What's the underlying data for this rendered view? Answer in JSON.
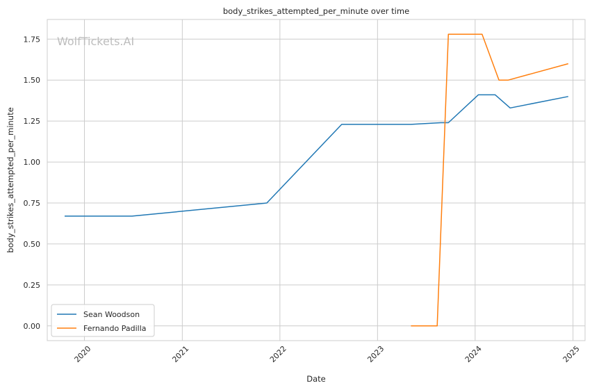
{
  "chart_data": {
    "type": "line",
    "title": "body_strikes_attempted_per_minute over time",
    "xlabel": "Date",
    "ylabel": "body_strikes_attempted_per_minute",
    "watermark": "WolfTickets.AI",
    "grid": true,
    "legend_position": "lower-left",
    "xlim": [
      "2019-08-15",
      "2025-02-15"
    ],
    "ylim": [
      -0.09,
      1.87
    ],
    "x_ticks": [
      "2020-01-01",
      "2021-01-01",
      "2022-01-01",
      "2023-01-01",
      "2024-01-01",
      "2025-01-01"
    ],
    "x_tick_labels": [
      "2020",
      "2021",
      "2022",
      "2023",
      "2024",
      "2025"
    ],
    "y_ticks": [
      0.0,
      0.25,
      0.5,
      0.75,
      1.0,
      1.25,
      1.5,
      1.75
    ],
    "y_tick_labels": [
      "0.00",
      "0.25",
      "0.50",
      "0.75",
      "1.00",
      "1.25",
      "1.50",
      "1.75"
    ],
    "series": [
      {
        "name": "Sean Woodson",
        "color": "#1f77b4",
        "x": [
          "2019-10-19",
          "2020-06-27",
          "2021-11-13",
          "2022-08-20",
          "2023-05-06",
          "2023-08-26",
          "2023-09-23",
          "2024-01-13",
          "2024-03-16",
          "2024-05-11",
          "2024-12-14"
        ],
        "y": [
          0.67,
          0.67,
          0.75,
          1.23,
          1.23,
          1.24,
          1.24,
          1.41,
          1.41,
          1.33,
          1.4
        ]
      },
      {
        "name": "Fernando Padilla",
        "color": "#ff7f0e",
        "x": [
          "2023-05-06",
          "2023-08-12",
          "2023-09-23",
          "2024-01-27",
          "2024-03-30",
          "2024-05-04",
          "2024-12-14"
        ],
        "y": [
          0.0,
          0.0,
          1.78,
          1.78,
          1.5,
          1.5,
          1.6
        ]
      }
    ]
  }
}
